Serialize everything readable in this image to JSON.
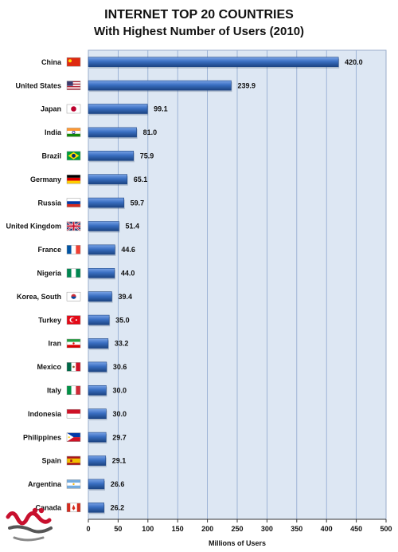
{
  "chart_data": {
    "type": "bar",
    "orientation": "horizontal",
    "title": "INTERNET TOP 20 COUNTRIES",
    "subtitle": "With Highest Number of Users (2010)",
    "xlabel": "Millions of Users",
    "ylabel": "",
    "xlim": [
      0,
      500
    ],
    "xticks": [
      0,
      50,
      100,
      150,
      200,
      250,
      300,
      350,
      400,
      450,
      500
    ],
    "grid": true,
    "categories": [
      "China",
      "United States",
      "Japan",
      "India",
      "Brazil",
      "Germany",
      "Russia",
      "United Kingdom",
      "France",
      "Nigeria",
      "Korea, South",
      "Turkey",
      "Iran",
      "Mexico",
      "Italy",
      "Indonesia",
      "Philippines",
      "Spain",
      "Argentina",
      "Canada"
    ],
    "values": [
      420.0,
      239.9,
      99.1,
      81.0,
      75.9,
      65.1,
      59.7,
      51.4,
      44.6,
      44.0,
      39.4,
      35.0,
      33.2,
      30.6,
      30.0,
      30.0,
      29.7,
      29.1,
      26.6,
      26.2
    ],
    "data_labels": [
      "420.0",
      "239.9",
      "99.1",
      "81.0",
      "75.9",
      "65.1",
      "59.7",
      "51.4",
      "44.6",
      "44.0",
      "39.4",
      "35.0",
      "33.2",
      "30.6",
      "30.0",
      "30.0",
      "29.7",
      "29.1",
      "26.6",
      "26.2"
    ],
    "flag_icons": [
      "flag-china-icon",
      "flag-united-states-icon",
      "flag-japan-icon",
      "flag-india-icon",
      "flag-brazil-icon",
      "flag-germany-icon",
      "flag-russia-icon",
      "flag-united-kingdom-icon",
      "flag-france-icon",
      "flag-nigeria-icon",
      "flag-korea-south-icon",
      "flag-turkey-icon",
      "flag-iran-icon",
      "flag-mexico-icon",
      "flag-italy-icon",
      "flag-indonesia-icon",
      "flag-philippines-icon",
      "flag-spain-icon",
      "flag-argentina-icon",
      "flag-canada-icon"
    ],
    "colors": {
      "bar": "#2e62b4",
      "bar_light": "#6d9ae0",
      "bar_dark": "#1d4585",
      "plot_bg": "#dde7f3",
      "grid": "#8fa8cf"
    }
  },
  "logo_icon": "site-logo-icon"
}
